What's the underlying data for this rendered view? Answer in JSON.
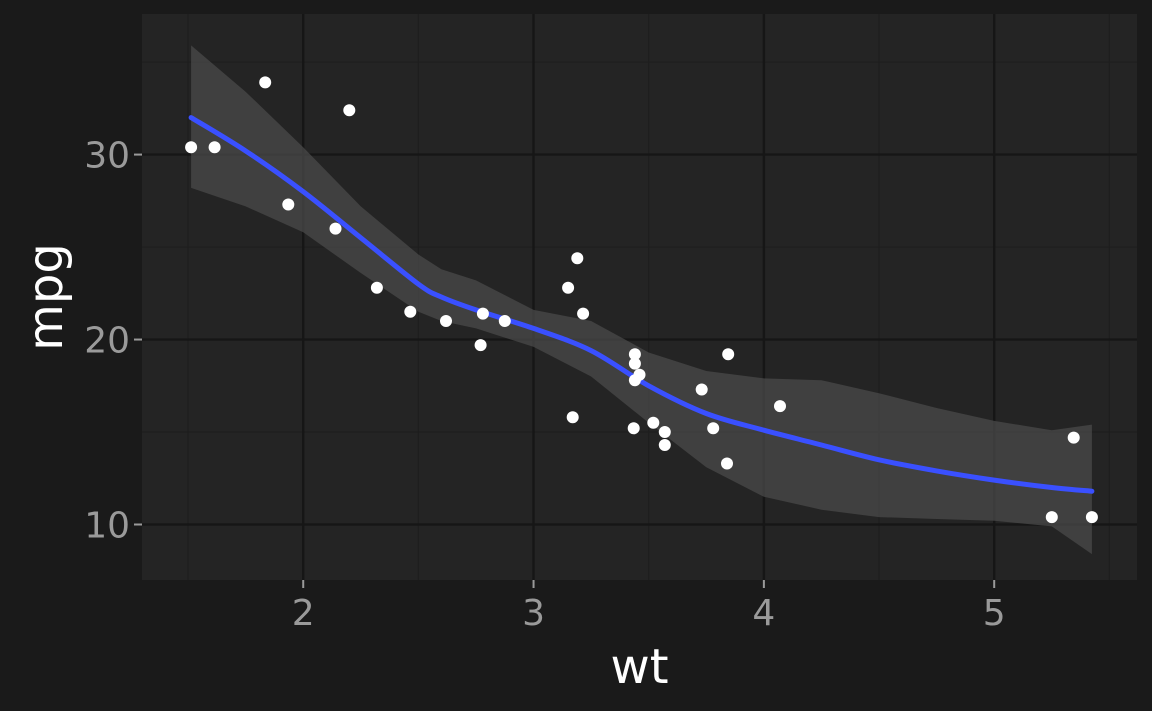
{
  "chart_data": {
    "type": "scatter",
    "title": "",
    "xlabel": "wt",
    "ylabel": "mpg",
    "xlim": [
      1.3,
      5.62
    ],
    "ylim": [
      7.0,
      37.6
    ],
    "x_ticks": [
      2,
      3,
      4,
      5
    ],
    "x_tick_labels": [
      "2",
      "3",
      "4",
      "5"
    ],
    "y_ticks": [
      10,
      20,
      30
    ],
    "y_tick_labels": [
      "10",
      "20",
      "30"
    ],
    "grid": true,
    "legend": "none",
    "points": {
      "x": [
        2.62,
        2.875,
        2.32,
        3.215,
        3.44,
        3.46,
        3.57,
        3.19,
        3.15,
        3.44,
        3.44,
        4.07,
        3.73,
        3.78,
        5.25,
        5.424,
        5.345,
        2.2,
        1.615,
        1.835,
        2.465,
        3.52,
        3.435,
        3.84,
        3.845,
        1.935,
        2.14,
        1.513,
        3.17,
        2.77,
        3.57,
        2.78
      ],
      "y": [
        21.0,
        21.0,
        22.8,
        21.4,
        18.7,
        18.1,
        14.3,
        24.4,
        22.8,
        19.2,
        17.8,
        16.4,
        17.3,
        15.2,
        10.4,
        10.4,
        14.7,
        32.4,
        30.4,
        33.9,
        21.5,
        15.5,
        15.2,
        13.3,
        19.2,
        27.3,
        26.0,
        30.4,
        15.8,
        19.7,
        15.0,
        21.4
      ]
    },
    "smooth": {
      "x": [
        1.513,
        1.75,
        2.0,
        2.25,
        2.5,
        2.6,
        2.75,
        3.0,
        3.25,
        3.5,
        3.75,
        4.0,
        4.25,
        4.5,
        4.75,
        5.0,
        5.25,
        5.424
      ],
      "y": [
        32.0,
        30.2,
        28.0,
        25.5,
        23.0,
        22.3,
        21.6,
        20.6,
        19.4,
        17.5,
        16.0,
        15.1,
        14.3,
        13.5,
        12.9,
        12.4,
        12.0,
        11.8
      ],
      "lower": [
        28.2,
        27.2,
        25.8,
        23.6,
        21.5,
        21.0,
        20.6,
        19.6,
        18.0,
        15.5,
        13.1,
        11.5,
        10.8,
        10.4,
        10.3,
        10.2,
        9.9,
        8.4
      ],
      "upper": [
        35.9,
        33.4,
        30.4,
        27.2,
        24.6,
        23.8,
        23.2,
        21.6,
        21.0,
        19.3,
        18.3,
        17.9,
        17.8,
        17.1,
        16.3,
        15.6,
        15.1,
        15.4
      ]
    },
    "colors": {
      "background": "#1a1a1a",
      "panel": "#242424",
      "grid_major": "#161616",
      "grid_minor": "#1e1e1e",
      "points": "#ffffff",
      "line": "#3a50ff",
      "ribbon": "#4a4a4a",
      "tick_text": "#9a9a9a",
      "axis_title": "#ffffff"
    }
  }
}
